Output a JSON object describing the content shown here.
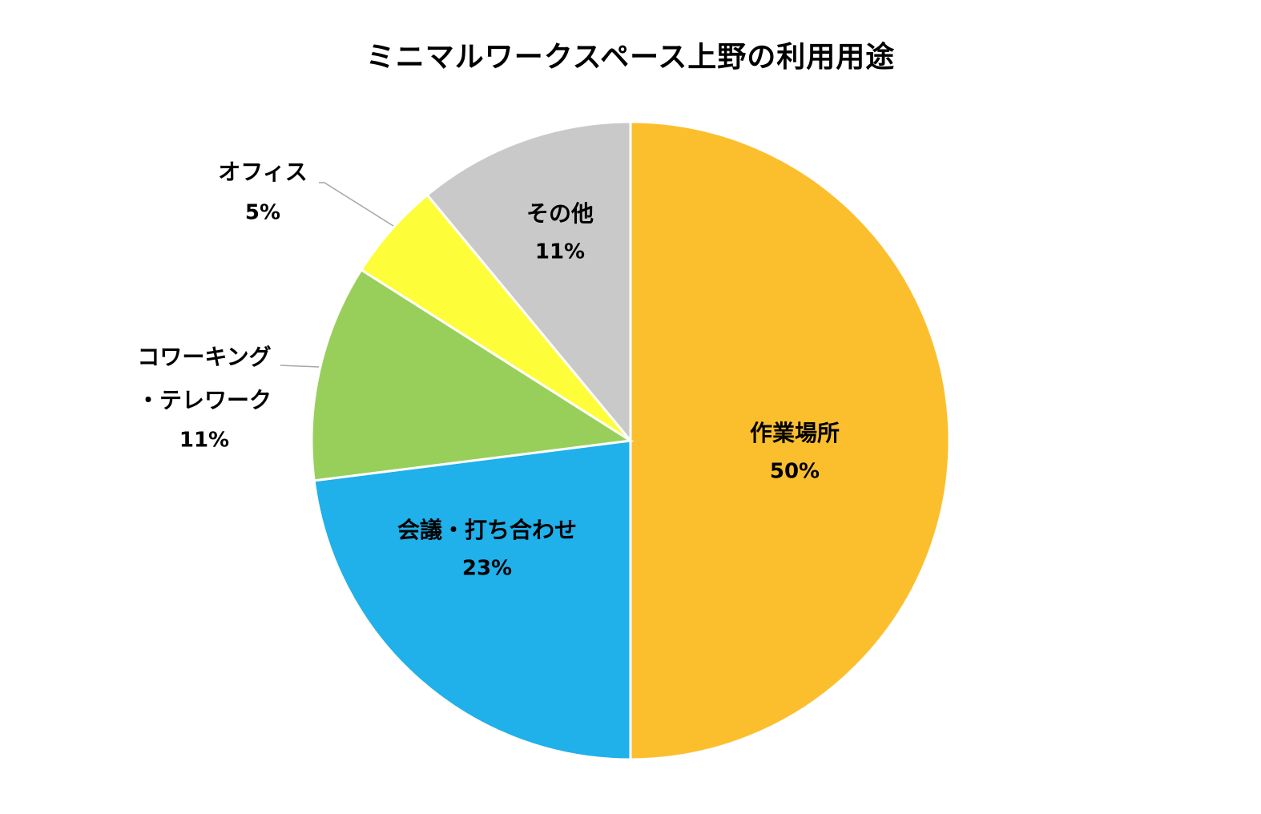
{
  "chart_data": {
    "type": "pie",
    "title": "ミニマルワークスペース上野の利用用途",
    "slices": [
      {
        "label": "作業場所",
        "value": 50,
        "pct_label": "50%",
        "color": "#FBBF2E"
      },
      {
        "label": "会議・打ち合わせ",
        "value": 23,
        "pct_label": "23%",
        "color": "#20B0EA"
      },
      {
        "label": "コワーキング・テレワーク",
        "label_lines": [
          "コワーキング",
          "・テレワーク"
        ],
        "value": 11,
        "pct_label": "11%",
        "color": "#98CF5A"
      },
      {
        "label": "オフィス",
        "value": 5,
        "pct_label": "5%",
        "color": "#FEFD3A"
      },
      {
        "label": "その他",
        "value": 11,
        "pct_label": "11%",
        "color": "#C9C9C9"
      }
    ],
    "start": "12 o'clock",
    "direction": "clockwise",
    "legend": "none"
  }
}
